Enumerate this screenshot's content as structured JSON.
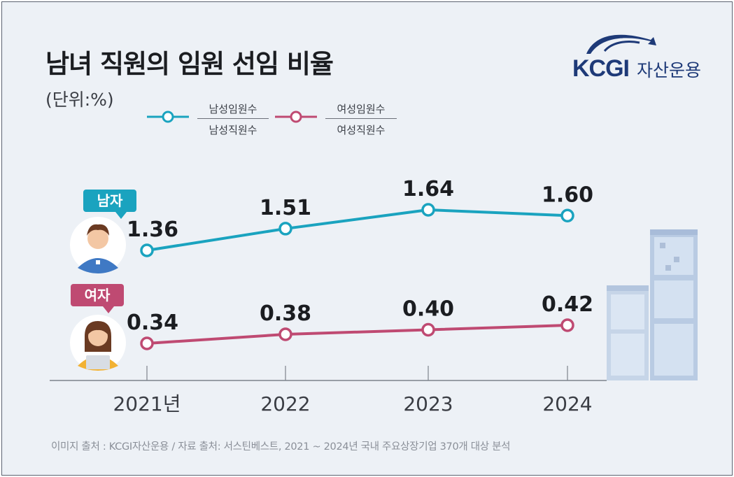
{
  "header": {
    "title": "남녀 직원의 임원 선임 비율",
    "unit": "(단위:%)"
  },
  "logo": {
    "brand": "KCGI",
    "sub": "자산운용"
  },
  "legend": {
    "male": {
      "numerator": "남성임원수",
      "denominator": "남성직원수",
      "color": "#1aa3bf"
    },
    "female": {
      "numerator": "여성임원수",
      "denominator": "여성직원수",
      "color": "#bf4a72"
    }
  },
  "tags": {
    "male": "남자",
    "female": "여자"
  },
  "footer": "이미지 출처 : KCGI자산운용 / 자료 출처: 서스틴베스트, 2021 ~ 2024년 국내 주요상장기업 370개 대상 분석",
  "chart_data": {
    "type": "line",
    "categories": [
      "2021년",
      "2022",
      "2023",
      "2024"
    ],
    "series": [
      {
        "name": "남자",
        "values": [
          1.36,
          1.51,
          1.64,
          1.6
        ],
        "labels": [
          "1.36",
          "1.51",
          "1.64",
          "1.60"
        ],
        "color": "#1aa3bf"
      },
      {
        "name": "여자",
        "values": [
          0.34,
          0.38,
          0.4,
          0.42
        ],
        "labels": [
          "0.34",
          "0.38",
          "0.40",
          "0.42"
        ],
        "color": "#bf4a72"
      }
    ],
    "title": "남녀 직원의 임원 선임 비율",
    "xlabel": "",
    "ylabel": "",
    "grid": false
  }
}
